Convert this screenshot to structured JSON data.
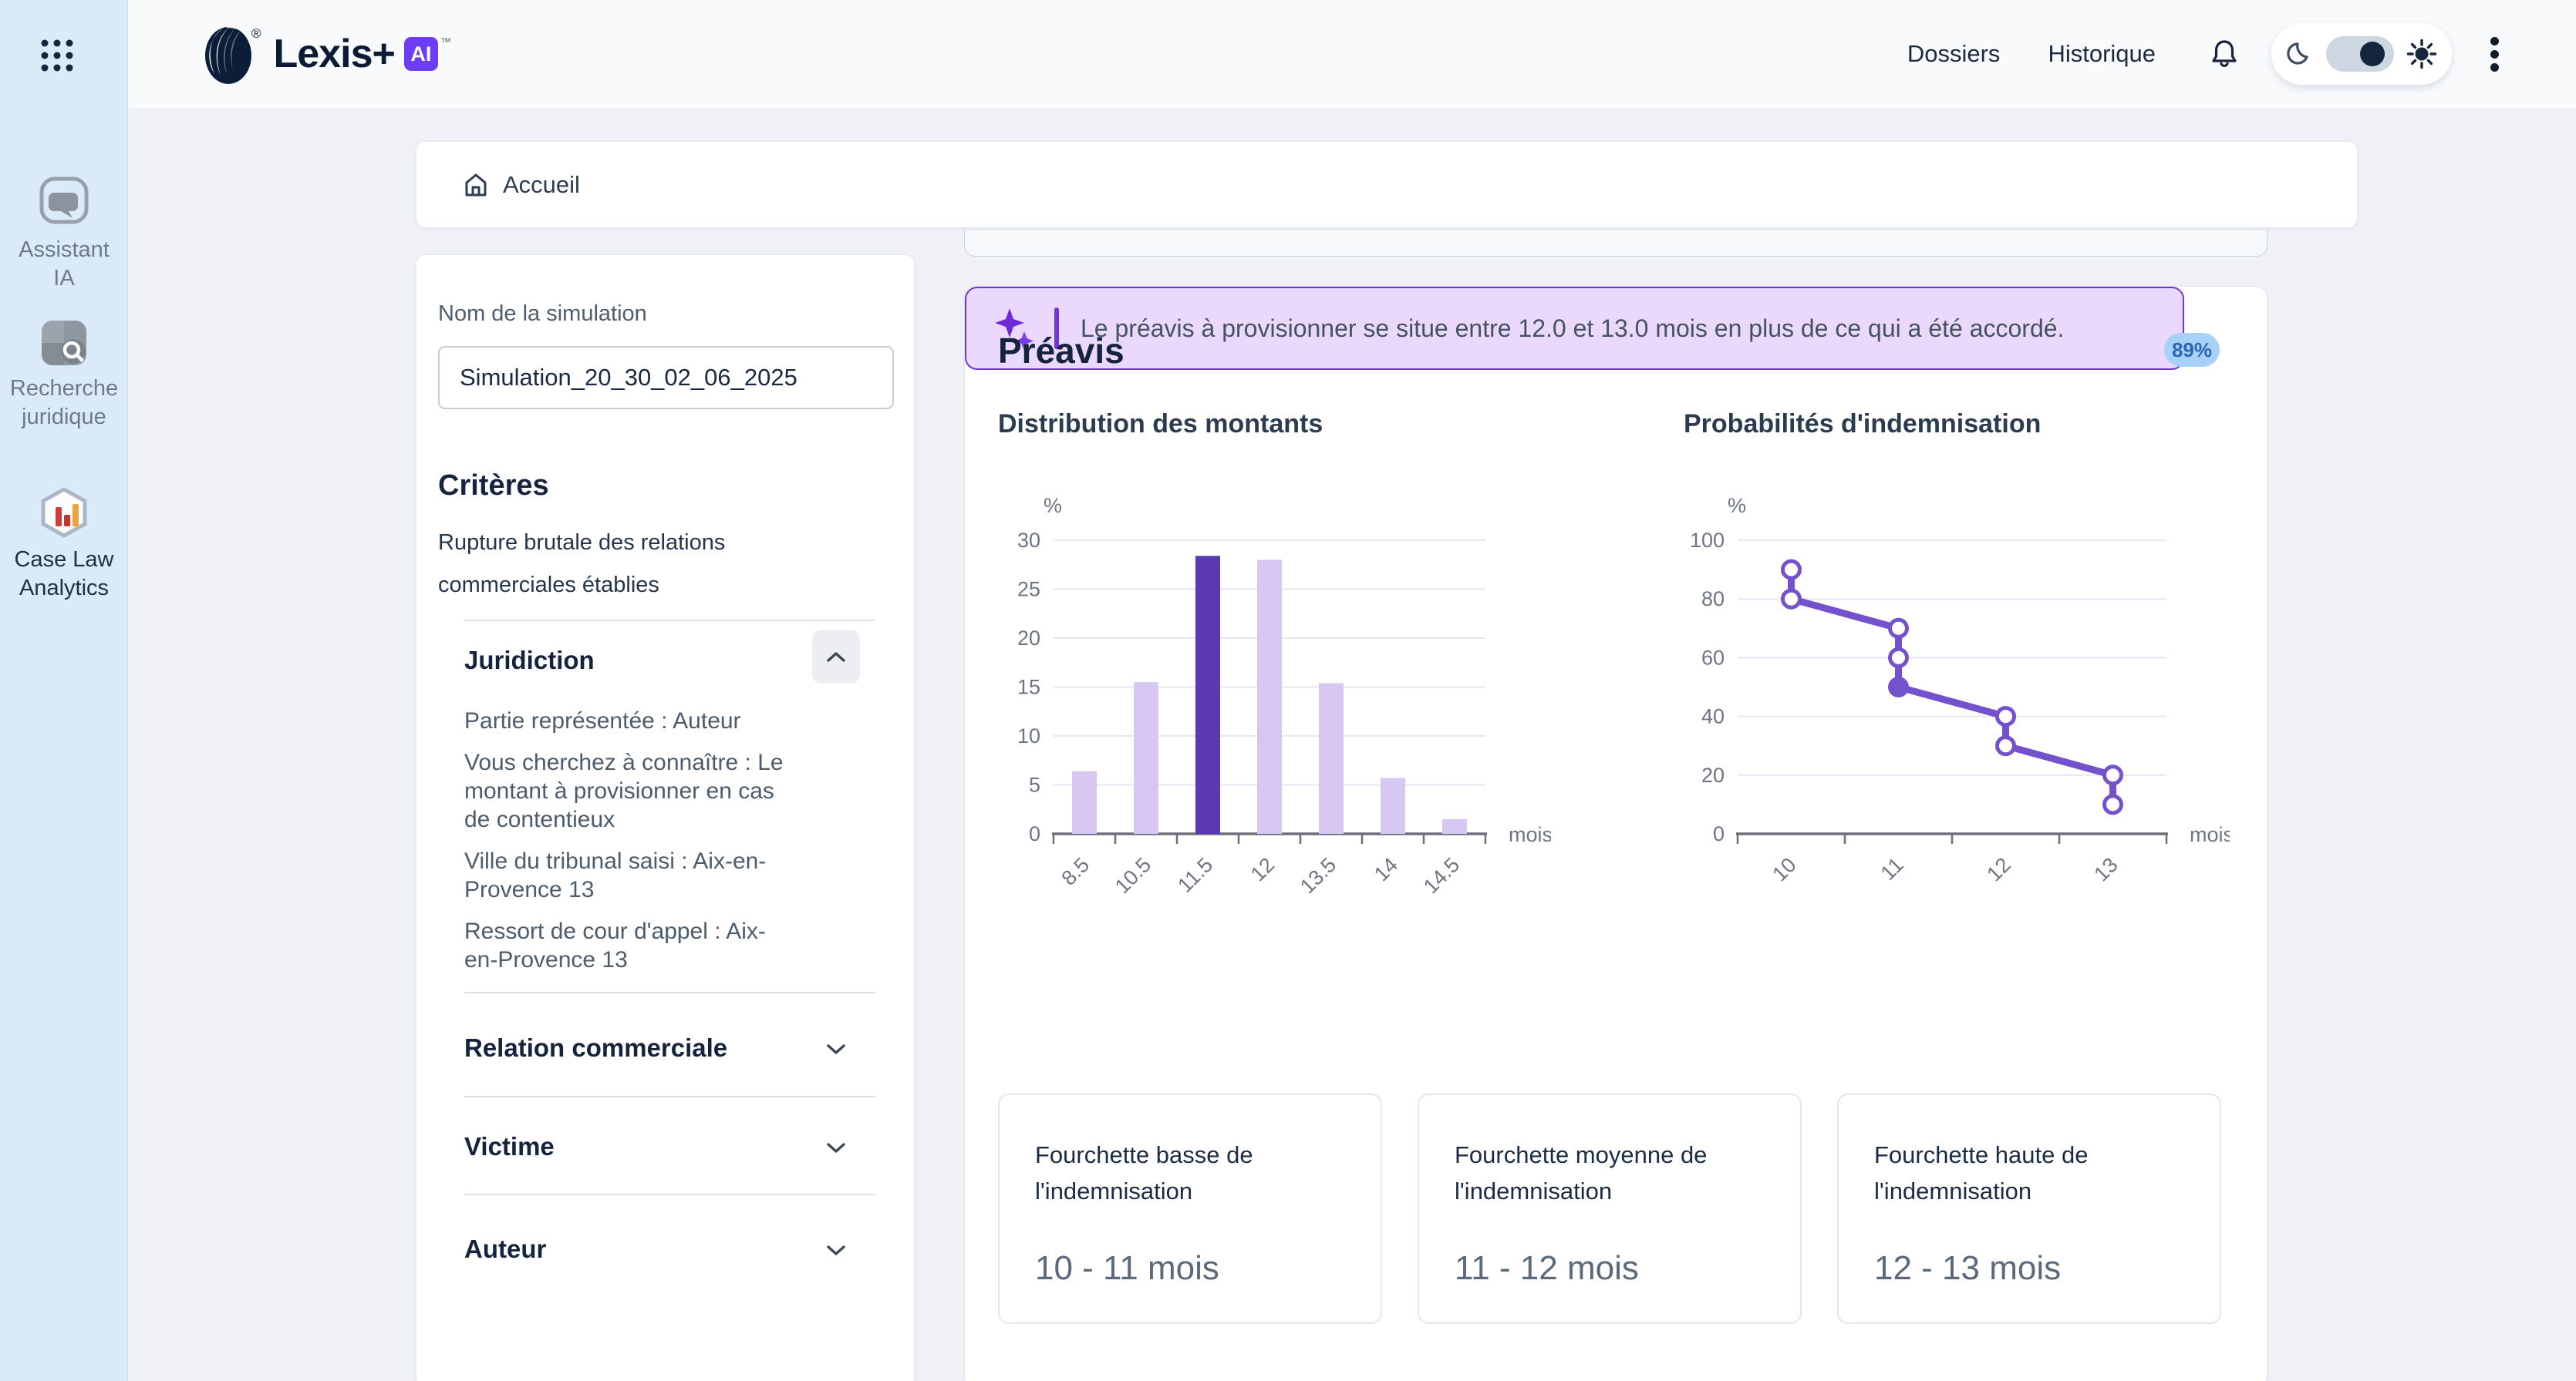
{
  "brand": {
    "name": "Lexis+",
    "ai_badge": "AI",
    "reg_mark": "®",
    "tm_mark": "™"
  },
  "sidebar": {
    "items": [
      {
        "label": "Assistant IA",
        "icon": "chat-bubble-icon",
        "active": false
      },
      {
        "label": "Recherche juridique",
        "icon": "search-tile-icon",
        "active": false
      },
      {
        "label": "Case Law Analytics",
        "icon": "hexagon-bars-icon",
        "active": true
      }
    ]
  },
  "header": {
    "nav": [
      {
        "label": "Dossiers"
      },
      {
        "label": "Historique"
      }
    ],
    "icons": [
      "bell-icon",
      "moon-icon",
      "sun-icon",
      "kebab-menu-icon"
    ],
    "theme_toggle_state": "dark-thumb-right"
  },
  "breadcrumb": {
    "home_label": "Accueil",
    "icon": "home-icon"
  },
  "simulation_panel": {
    "name_label": "Nom de la simulation",
    "name_value": "Simulation_20_30_02_06_2025",
    "criteria_title": "Critères",
    "criteria_text": "Rupture brutale des relations commerciales établies",
    "sections": [
      {
        "title": "Juridiction",
        "expanded": true,
        "details": [
          "Partie représentée : Auteur",
          "Vous cherchez à connaître : Le montant à provisionner en cas de contentieux",
          "Ville du tribunal saisi : Aix-en-Provence 13",
          "Ressort de cour d'appel : Aix-en-Provence 13"
        ]
      },
      {
        "title": "Relation commerciale",
        "expanded": false
      },
      {
        "title": "Victime",
        "expanded": false
      },
      {
        "title": "Auteur",
        "expanded": false
      }
    ]
  },
  "results": {
    "title": "Préavis",
    "confidence_badge": "89%",
    "callout": "Le préavis à provisionner se situe entre 12.0 et 13.0 mois en plus de ce qui a été accordé.",
    "callout_icon": "sparkle-stars-icon",
    "cards": [
      {
        "title": "Fourchette basse de l'indemnisation",
        "value": "10 - 11 mois"
      },
      {
        "title": "Fourchette moyenne de l'indemnisation",
        "value": "11 - 12 mois"
      },
      {
        "title": "Fourchette haute de l'indemnisation",
        "value": "12 - 13 mois"
      }
    ]
  },
  "chart_data": [
    {
      "type": "bar",
      "title": "Distribution des montants",
      "y_unit": "%",
      "x_unit": "mois",
      "categories": [
        "8.5",
        "10.5",
        "11.5",
        "12",
        "13.5",
        "14",
        "14.5"
      ],
      "values": [
        6.4,
        15.5,
        28.4,
        28.0,
        15.4,
        5.7,
        1.5
      ],
      "highlight_index": 2,
      "ylim": [
        0,
        30
      ],
      "yticks": [
        0,
        5,
        10,
        15,
        20,
        25,
        30
      ],
      "grid": true,
      "colors": {
        "bar": "#d7c8f3",
        "highlight": "#5b39b4"
      }
    },
    {
      "type": "line",
      "title": "Probabilités d'indemnisation",
      "y_unit": "%",
      "x_unit": "mois",
      "x_labels": [
        "10",
        "11",
        "12",
        "13"
      ],
      "points": [
        {
          "x": 0,
          "y": 90
        },
        {
          "x": 0,
          "y": 80
        },
        {
          "x": 1,
          "y": 70
        },
        {
          "x": 1,
          "y": 60
        },
        {
          "x": 1,
          "y": 50,
          "filled": true
        },
        {
          "x": 2,
          "y": 40
        },
        {
          "x": 2,
          "y": 30
        },
        {
          "x": 3,
          "y": 20
        },
        {
          "x": 3,
          "y": 10
        }
      ],
      "ylim": [
        0,
        100
      ],
      "yticks": [
        0,
        20,
        40,
        60,
        80,
        100
      ],
      "grid": true,
      "color": "#7452cd"
    }
  ],
  "colors": {
    "sidebar_bg": "#dbeaf8",
    "accent_purple": "#6d3cf5",
    "bar_light": "#d7c8f3",
    "bar_highlight": "#5b39b4",
    "line_purple": "#7452cd",
    "badge_bg": "#a7d1f8",
    "badge_text": "#2b67b4",
    "callout_bg": "#ead9fc",
    "callout_border": "#7134d8"
  }
}
